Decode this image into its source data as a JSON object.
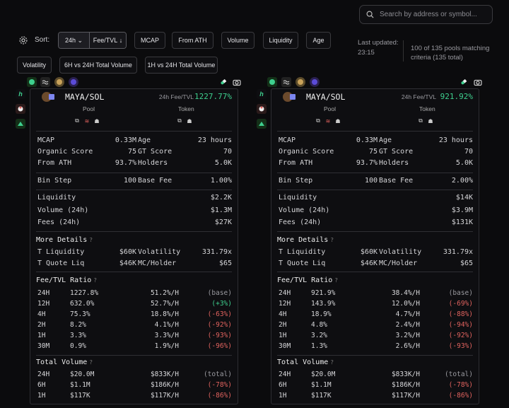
{
  "search": {
    "placeholder": "Search by address or symbol..."
  },
  "toolbar": {
    "sort_label": "Sort:",
    "timeframe": "24h",
    "sort_key": "Fee/TVL",
    "buttons": [
      "MCAP",
      "From ATH",
      "Volume",
      "Liquidity",
      "Age"
    ],
    "buttons2": [
      "Volatility",
      "6H vs 24H Total Volume",
      "1H vs 24H Total Volume"
    ]
  },
  "status": {
    "last_updated_label": "Last updated:",
    "last_updated_time": "23:15",
    "pools_text": "100 of 135 pools matching criteria (135 total)"
  },
  "colors": {
    "accent_green": "#3ecf8e",
    "negative_red": "#e0625e"
  },
  "cards": [
    {
      "pair": "MAYA/SOL",
      "ratio_label": "24h Fee/TVL",
      "ratio_value": "1227.77%",
      "pool_label": "Pool",
      "token_label": "Token",
      "stats": {
        "mcap_l": "MCAP",
        "mcap": "0.33M",
        "age_l": "Age",
        "age": "23 hours",
        "org_l": "Organic Score",
        "org": "75",
        "gt_l": "GT Score",
        "gt": "70",
        "ath_l": "From ATH",
        "ath": "93.7%",
        "hold_l": "Holders",
        "hold": "5.0K",
        "bin_l": "Bin Step",
        "bin": "100",
        "fee_l": "Base Fee",
        "fee": "1.00%",
        "liq_l": "Liquidity",
        "liq": "$2.2K",
        "vol_l": "Volume (24h)",
        "vol": "$1.3M",
        "fees_l": "Fees (24h)",
        "fees": "$27K"
      },
      "more": {
        "title": "More Details",
        "tliq_l": "T Liquidity",
        "tliq": "$60K",
        "volat_l": "Volatility",
        "volat": "331.79x",
        "tq_l": "T Quote Liq",
        "tq": "$46K",
        "mch_l": "MC/Holder",
        "mch": "$65"
      },
      "fee_tvl": {
        "title": "Fee/TVL Ratio",
        "rows": [
          {
            "tf": "24H",
            "v": "1227.8%",
            "h": "51.2%/H",
            "c": "(base)",
            "k": "muted"
          },
          {
            "tf": "12H",
            "v": "632.0%",
            "h": "52.7%/H",
            "c": "(+3%)",
            "k": "pos"
          },
          {
            "tf": "4H",
            "v": "75.3%",
            "h": "18.8%/H",
            "c": "(-63%)",
            "k": "neg"
          },
          {
            "tf": "2H",
            "v": "8.2%",
            "h": "4.1%/H",
            "c": "(-92%)",
            "k": "neg"
          },
          {
            "tf": "1H",
            "v": "3.3%",
            "h": "3.3%/H",
            "c": "(-93%)",
            "k": "neg"
          },
          {
            "tf": "30M",
            "v": "0.9%",
            "h": "1.9%/H",
            "c": "(-96%)",
            "k": "neg"
          }
        ]
      },
      "total_volume": {
        "title": "Total Volume",
        "rows": [
          {
            "tf": "24H",
            "v": "$20.0M",
            "h": "$833K/H",
            "c": "(total)",
            "k": "muted"
          },
          {
            "tf": "6H",
            "v": "$1.1M",
            "h": "$186K/H",
            "c": "(-78%)",
            "k": "neg"
          },
          {
            "tf": "1H",
            "v": "$117K",
            "h": "$117K/H",
            "c": "(-86%)",
            "k": "neg"
          }
        ]
      }
    },
    {
      "pair": "MAYA/SOL",
      "ratio_label": "24h Fee/TVL",
      "ratio_value": "921.92%",
      "pool_label": "Pool",
      "token_label": "Token",
      "stats": {
        "mcap_l": "MCAP",
        "mcap": "0.33M",
        "age_l": "Age",
        "age": "23 hours",
        "org_l": "Organic Score",
        "org": "75",
        "gt_l": "GT Score",
        "gt": "70",
        "ath_l": "From ATH",
        "ath": "93.7%",
        "hold_l": "Holders",
        "hold": "5.0K",
        "bin_l": "Bin Step",
        "bin": "100",
        "fee_l": "Base Fee",
        "fee": "2.00%",
        "liq_l": "Liquidity",
        "liq": "$14K",
        "vol_l": "Volume (24h)",
        "vol": "$3.9M",
        "fees_l": "Fees (24h)",
        "fees": "$131K"
      },
      "more": {
        "title": "More Details",
        "tliq_l": "T Liquidity",
        "tliq": "$60K",
        "volat_l": "Volatility",
        "volat": "331.79x",
        "tq_l": "T Quote Liq",
        "tq": "$46K",
        "mch_l": "MC/Holder",
        "mch": "$65"
      },
      "fee_tvl": {
        "title": "Fee/TVL Ratio",
        "rows": [
          {
            "tf": "24H",
            "v": "921.9%",
            "h": "38.4%/H",
            "c": "(base)",
            "k": "muted"
          },
          {
            "tf": "12H",
            "v": "143.9%",
            "h": "12.0%/H",
            "c": "(-69%)",
            "k": "neg"
          },
          {
            "tf": "4H",
            "v": "18.9%",
            "h": "4.7%/H",
            "c": "(-88%)",
            "k": "neg"
          },
          {
            "tf": "2H",
            "v": "4.8%",
            "h": "2.4%/H",
            "c": "(-94%)",
            "k": "neg"
          },
          {
            "tf": "1H",
            "v": "3.2%",
            "h": "3.2%/H",
            "c": "(-92%)",
            "k": "neg"
          },
          {
            "tf": "30M",
            "v": "1.3%",
            "h": "2.6%/H",
            "c": "(-93%)",
            "k": "neg"
          }
        ]
      },
      "total_volume": {
        "title": "Total Volume",
        "rows": [
          {
            "tf": "24H",
            "v": "$20.0M",
            "h": "$833K/H",
            "c": "(total)",
            "k": "muted"
          },
          {
            "tf": "6H",
            "v": "$1.1M",
            "h": "$186K/H",
            "c": "(-78%)",
            "k": "neg"
          },
          {
            "tf": "1H",
            "v": "$117K",
            "h": "$117K/H",
            "c": "(-86%)",
            "k": "neg"
          }
        ]
      }
    }
  ]
}
